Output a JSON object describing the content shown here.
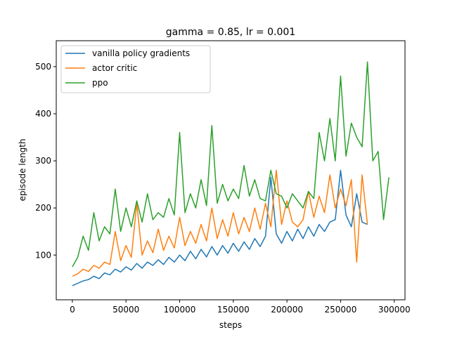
{
  "chart_data": {
    "type": "line",
    "title": "gamma = 0.85, lr = 0.001",
    "xlabel": "steps",
    "ylabel": "episode length",
    "xlim": [
      -15000,
      310000
    ],
    "ylim": [
      5,
      555
    ],
    "xticks": [
      0,
      50000,
      100000,
      150000,
      200000,
      250000,
      300000
    ],
    "xtick_labels": [
      "0",
      "50000",
      "100000",
      "150000",
      "200000",
      "250000",
      "300000"
    ],
    "yticks": [
      100,
      200,
      300,
      400,
      500
    ],
    "ytick_labels": [
      "100",
      "200",
      "300",
      "400",
      "500"
    ],
    "grid": false,
    "legend_position": "top-left",
    "series": [
      {
        "name": "vanilla policy gradients",
        "color": "#1f77b4",
        "x": [
          0,
          5000,
          10000,
          15000,
          20000,
          25000,
          30000,
          35000,
          40000,
          45000,
          50000,
          55000,
          60000,
          65000,
          70000,
          75000,
          80000,
          85000,
          90000,
          95000,
          100000,
          105000,
          110000,
          115000,
          120000,
          125000,
          130000,
          135000,
          140000,
          145000,
          150000,
          155000,
          160000,
          165000,
          170000,
          175000,
          180000,
          185000,
          190000,
          195000,
          200000,
          205000,
          210000,
          215000,
          220000,
          225000,
          230000,
          235000,
          240000,
          245000,
          250000,
          255000,
          260000,
          265000,
          270000,
          275000
        ],
        "y": [
          35,
          40,
          45,
          48,
          55,
          50,
          62,
          58,
          70,
          64,
          75,
          68,
          82,
          72,
          85,
          78,
          90,
          80,
          95,
          85,
          100,
          88,
          108,
          92,
          112,
          96,
          118,
          100,
          120,
          104,
          125,
          108,
          128,
          112,
          135,
          118,
          140,
          265,
          145,
          125,
          150,
          130,
          155,
          135,
          160,
          140,
          165,
          150,
          170,
          175,
          280,
          185,
          160,
          230,
          170,
          165
        ]
      },
      {
        "name": "actor critic",
        "color": "#ff7f0e",
        "x": [
          0,
          5000,
          10000,
          15000,
          20000,
          25000,
          30000,
          35000,
          40000,
          45000,
          50000,
          55000,
          60000,
          65000,
          70000,
          75000,
          80000,
          85000,
          90000,
          95000,
          100000,
          105000,
          110000,
          115000,
          120000,
          125000,
          130000,
          135000,
          140000,
          145000,
          150000,
          155000,
          160000,
          165000,
          170000,
          175000,
          180000,
          185000,
          190000,
          195000,
          200000,
          205000,
          210000,
          215000,
          220000,
          225000,
          230000,
          235000,
          240000,
          245000,
          250000,
          255000,
          260000,
          265000,
          270000,
          275000
        ],
        "y": [
          55,
          60,
          70,
          65,
          78,
          72,
          85,
          80,
          150,
          88,
          120,
          95,
          210,
          100,
          130,
          105,
          155,
          110,
          140,
          115,
          180,
          120,
          150,
          125,
          165,
          130,
          200,
          135,
          175,
          140,
          190,
          145,
          180,
          150,
          200,
          155,
          210,
          160,
          280,
          165,
          215,
          170,
          160,
          175,
          235,
          180,
          225,
          190,
          270,
          200,
          240,
          205,
          260,
          85,
          270,
          165
        ]
      },
      {
        "name": "ppo",
        "color": "#2ca02c",
        "x": [
          0,
          5000,
          10000,
          15000,
          20000,
          25000,
          30000,
          35000,
          40000,
          45000,
          50000,
          55000,
          60000,
          65000,
          70000,
          75000,
          80000,
          85000,
          90000,
          95000,
          100000,
          105000,
          110000,
          115000,
          120000,
          125000,
          130000,
          135000,
          140000,
          145000,
          150000,
          155000,
          160000,
          165000,
          170000,
          175000,
          180000,
          185000,
          190000,
          195000,
          200000,
          205000,
          210000,
          215000,
          220000,
          225000,
          230000,
          235000,
          240000,
          245000,
          250000,
          255000,
          260000,
          265000,
          270000,
          275000,
          280000,
          285000,
          290000,
          295000
        ],
        "y": [
          75,
          95,
          140,
          110,
          190,
          130,
          160,
          145,
          240,
          150,
          200,
          160,
          215,
          170,
          230,
          175,
          190,
          180,
          220,
          185,
          360,
          190,
          230,
          200,
          260,
          205,
          375,
          210,
          250,
          215,
          240,
          220,
          290,
          225,
          260,
          220,
          215,
          280,
          230,
          225,
          200,
          230,
          215,
          200,
          235,
          220,
          360,
          300,
          390,
          300,
          480,
          310,
          380,
          350,
          330,
          510,
          300,
          320,
          175,
          265
        ]
      }
    ]
  }
}
